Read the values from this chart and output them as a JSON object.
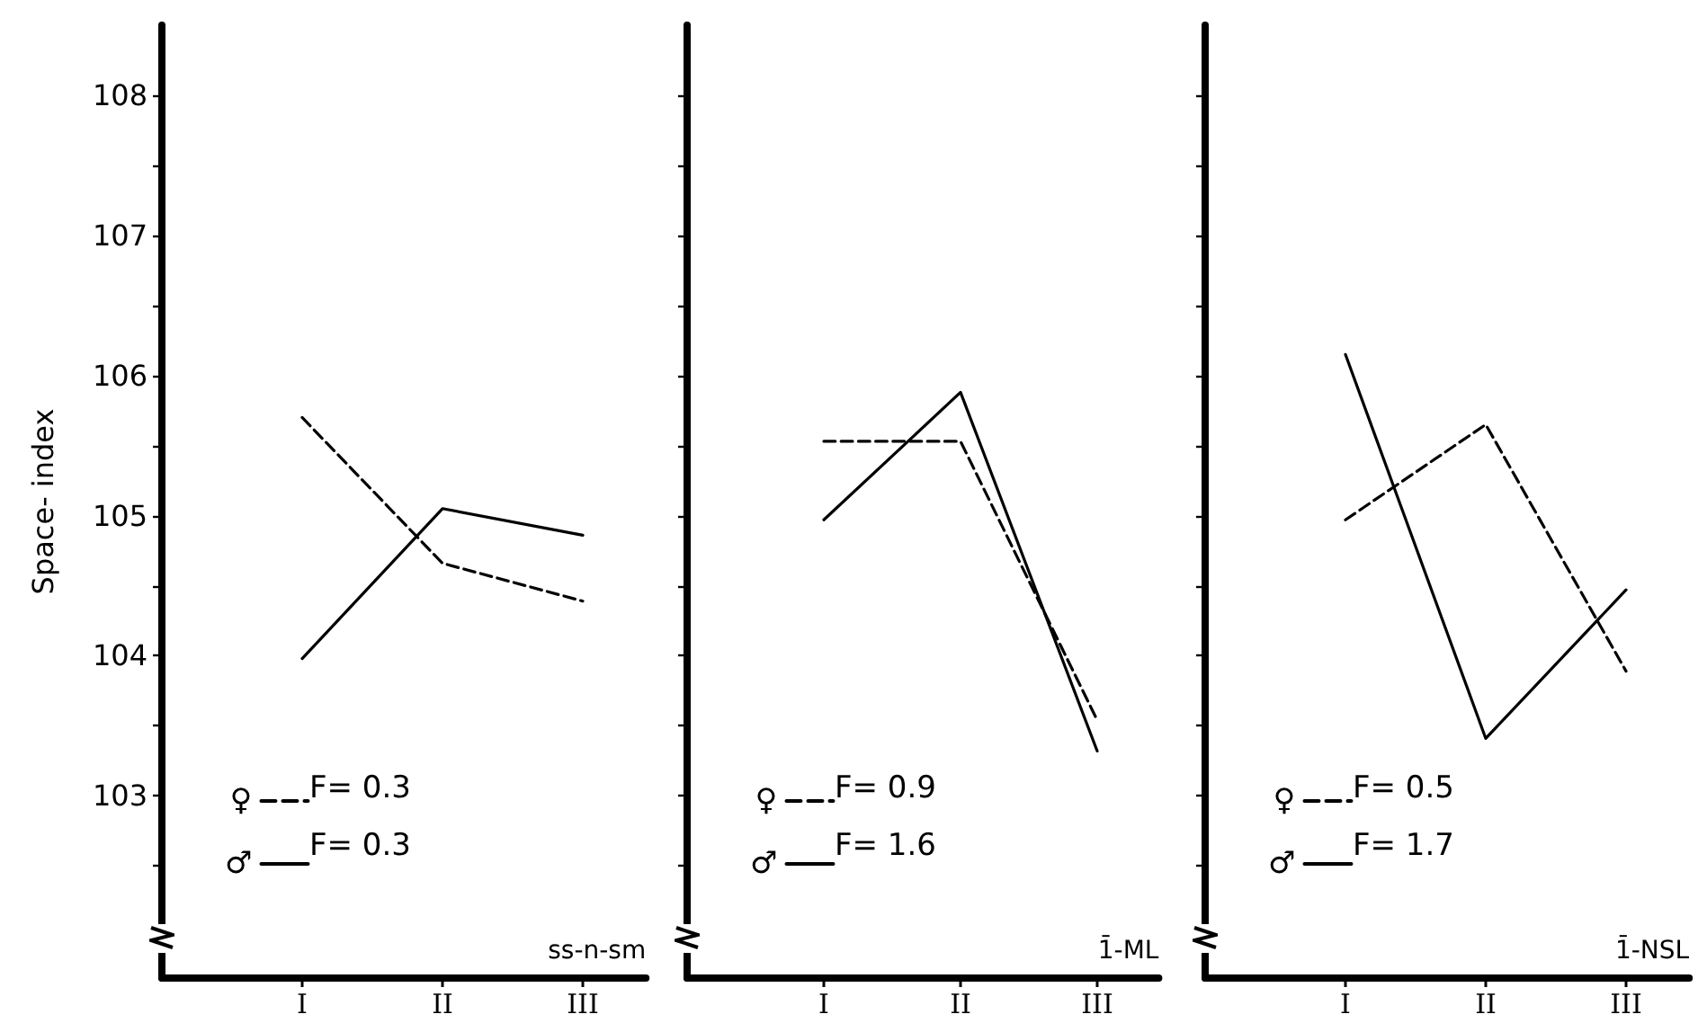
{
  "chart_data": [
    {
      "type": "line",
      "categories": [
        "I",
        "II",
        "III"
      ],
      "xlabel": "ss-n-sm",
      "ylabel": "Space- index",
      "ylim": [
        101.7,
        108.5
      ],
      "yticks": [
        {
          "value": 102.5,
          "label": null
        },
        103,
        {
          "value": 103.5,
          "label": null
        },
        104,
        {
          "value": 104.5,
          "label": null
        },
        105,
        {
          "value": 105.5,
          "label": null
        },
        106,
        {
          "value": 106.5,
          "label": null
        },
        107,
        {
          "value": 107.5,
          "label": null
        },
        108
      ],
      "series": [
        {
          "name": "♀",
          "color": "#000000",
          "line_style": "dashed",
          "values": [
            105.7,
            104.66,
            104.39
          ]
        },
        {
          "name": "♂",
          "color": "#000000",
          "line_style": "solid",
          "values": [
            103.98,
            105.05,
            104.86
          ]
        }
      ],
      "annotations": [
        "F= 0.3",
        "F= 0.3"
      ],
      "legend": "bottom left",
      "marker": "none",
      "grid": false
    },
    {
      "type": "line",
      "categories": [
        "I",
        "II",
        "III"
      ],
      "xlabel": "1̄-ML",
      "ylim": [
        101.7,
        108.5
      ],
      "yticks": [
        {
          "value": 102.5,
          "label": null
        },
        103,
        {
          "value": 103.5,
          "label": null
        },
        104,
        {
          "value": 104.5,
          "label": null
        },
        105,
        {
          "value": 105.5,
          "label": null
        },
        106,
        {
          "value": 106.5,
          "label": null
        },
        107,
        {
          "value": 107.5,
          "label": null
        },
        108
      ],
      "series": [
        {
          "name": "♀",
          "color": "#000000",
          "line_style": "dashed",
          "values": [
            105.53,
            105.53,
            103.54
          ]
        },
        {
          "name": "♂",
          "color": "#000000",
          "line_style": "solid",
          "values": [
            104.97,
            105.88,
            103.32
          ]
        }
      ],
      "annotations": [
        "F= 0.9",
        "F= 1.6"
      ],
      "legend": "bottom left",
      "marker": "none",
      "grid": false,
      "tick_labels": "x"
    },
    {
      "type": "line",
      "categories": [
        "I",
        "II",
        "III"
      ],
      "xlabel": "1̄-NSL",
      "ylim": [
        101.7,
        108.5
      ],
      "yticks": [
        {
          "value": 102.5,
          "label": null
        },
        103,
        {
          "value": 103.5,
          "label": null
        },
        104,
        {
          "value": 104.5,
          "label": null
        },
        105,
        {
          "value": 105.5,
          "label": null
        },
        106,
        {
          "value": 106.5,
          "label": null
        },
        107,
        {
          "value": 107.5,
          "label": null
        },
        108
      ],
      "series": [
        {
          "name": "♀",
          "color": "#000000",
          "line_style": "dashed",
          "values": [
            104.97,
            105.65,
            103.89
          ]
        },
        {
          "name": "♂",
          "color": "#000000",
          "line_style": "solid",
          "values": [
            106.15,
            103.41,
            104.47
          ]
        }
      ],
      "annotations": [
        "F= 0.5",
        "F= 1.7"
      ],
      "legend": "bottom left",
      "marker": "none",
      "grid": false,
      "tick_labels": "x"
    }
  ]
}
